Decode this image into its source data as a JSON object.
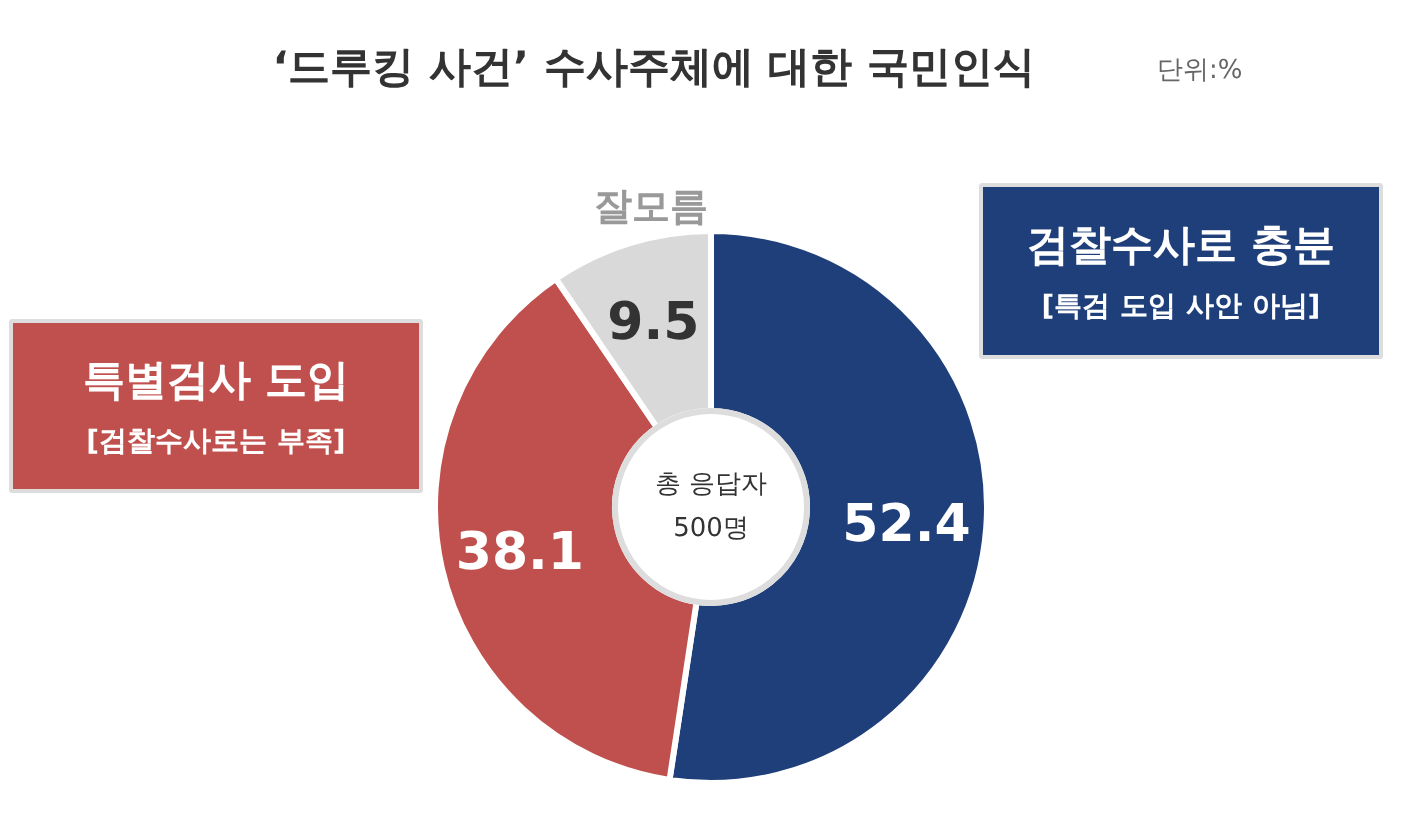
{
  "chart_data": {
    "type": "donut",
    "title": "‘드루킹 사건’  수사주체에 대한 국민인식",
    "subtitle": "단위:%",
    "categories": [
      "검찰수사로 충분\n[특검 도입 사안 아님]",
      "특별검사 도입\n[검찰수사로는 부족]",
      "잘모름"
    ],
    "values": [
      52.4,
      38.1,
      9.5
    ],
    "colors": [
      "#1f3f7a",
      "#c0504d",
      "#d9d9d9"
    ],
    "data_labels": true,
    "annotations": [
      "총 응답자\n500명"
    ]
  }
}
